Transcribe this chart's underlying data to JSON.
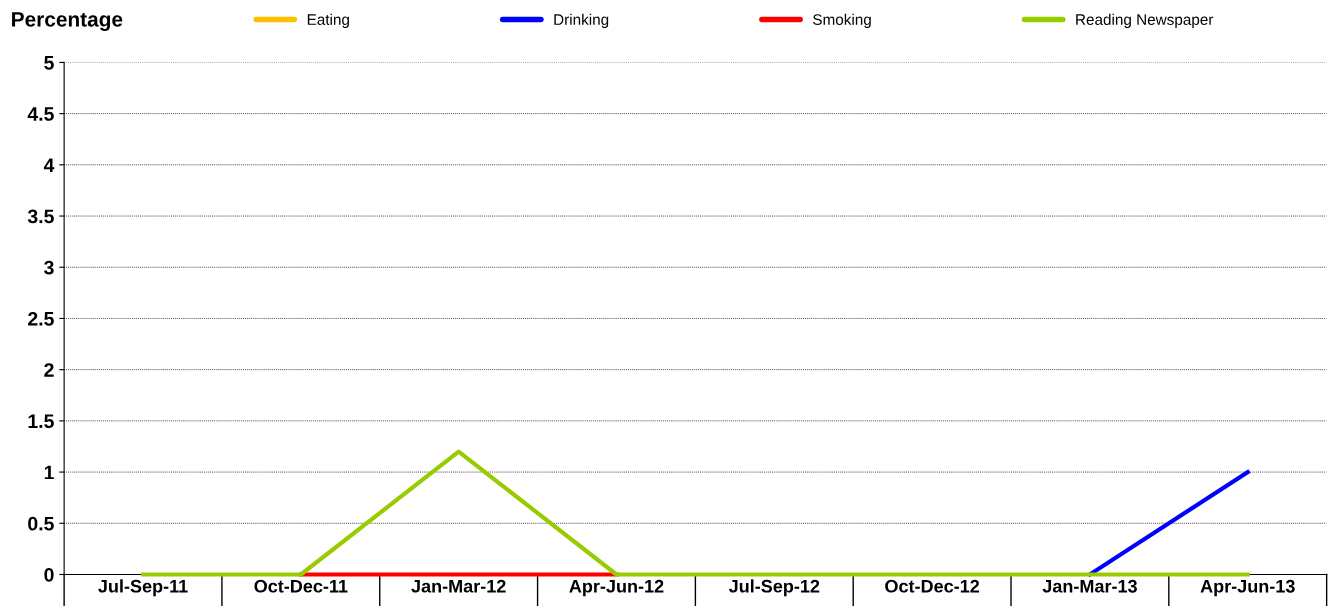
{
  "chart_data": {
    "type": "line",
    "ylabel": "Percentage",
    "categories": [
      "Jul-Sep-11",
      "Oct-Dec-11",
      "Jan-Mar-12",
      "Apr-Jun-12",
      "Jul-Sep-12",
      "Oct-Dec-12",
      "Jan-Mar-13",
      "Apr-Jun-13"
    ],
    "series": [
      {
        "name": "Eating",
        "color": "#ffc000",
        "values": [
          null,
          null,
          null,
          null,
          null,
          null,
          null,
          null
        ]
      },
      {
        "name": "Drinking",
        "color": "#0000ff",
        "values": [
          null,
          null,
          null,
          null,
          null,
          null,
          0,
          1
        ]
      },
      {
        "name": "Smoking",
        "color": "#ff0000",
        "values": [
          null,
          0,
          0,
          0,
          null,
          null,
          null,
          null
        ]
      },
      {
        "name": "Reading Newspaper",
        "color": "#99cc00",
        "values": [
          0,
          0,
          1.2,
          0,
          0,
          0,
          0,
          0
        ]
      }
    ],
    "ylim": [
      0,
      5
    ],
    "yticks": [
      0,
      0.5,
      1,
      1.5,
      2,
      2.5,
      3,
      3.5,
      4,
      4.5,
      5
    ],
    "grid": "y",
    "legend": "top",
    "marker": "none",
    "line_style": "solid"
  }
}
